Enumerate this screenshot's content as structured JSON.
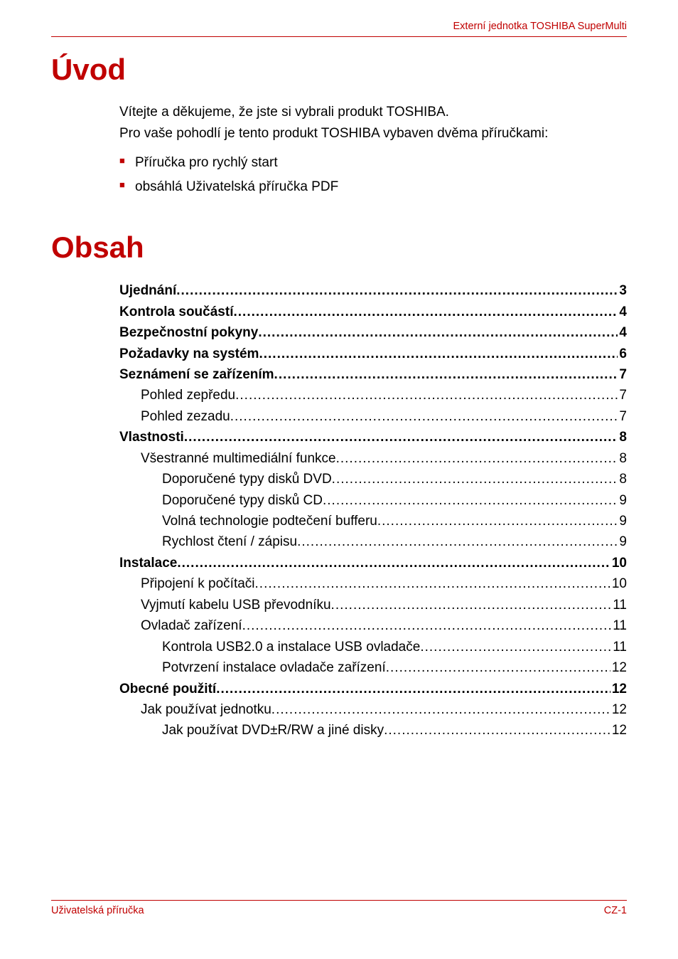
{
  "colors": {
    "accent": "#c00000",
    "text": "#000000",
    "background": "#ffffff"
  },
  "typography": {
    "body_fontsize_pt": 14,
    "h1_fontsize_pt": 32,
    "header_footer_fontsize_pt": 11,
    "font_family": "Arial"
  },
  "header": {
    "right_text": "Externí jednotka TOSHIBA SuperMulti"
  },
  "sections": {
    "uvod": {
      "title": "Úvod",
      "paragraphs": [
        "Vítejte a děkujeme, že jste si vybrali produkt TOSHIBA.",
        "Pro vaše pohodlí je tento produkt TOSHIBA vybaven dvěma příručkami:"
      ],
      "bullets": [
        "Příručka pro rychlý start",
        "obsáhlá Uživatelská příručka PDF"
      ]
    },
    "obsah": {
      "title": "Obsah"
    }
  },
  "toc": [
    {
      "level": 0,
      "label": "Ujednání",
      "page": "3"
    },
    {
      "level": 0,
      "label": "Kontrola součástí",
      "page": "4"
    },
    {
      "level": 0,
      "label": "Bezpečnostní pokyny",
      "page": "4"
    },
    {
      "level": 0,
      "label": "Požadavky na systém",
      "page": "6"
    },
    {
      "level": 0,
      "label": "Seznámení se zařízením",
      "page": "7"
    },
    {
      "level": 1,
      "label": "Pohled zepředu",
      "page": "7"
    },
    {
      "level": 1,
      "label": "Pohled zezadu",
      "page": "7"
    },
    {
      "level": 0,
      "label": "Vlastnosti",
      "page": "8"
    },
    {
      "level": 1,
      "label": "Všestranné multimediální funkce",
      "page": "8"
    },
    {
      "level": 2,
      "label": "Doporučené typy disků DVD",
      "page": "8"
    },
    {
      "level": 2,
      "label": "Doporučené typy disků CD",
      "page": "9"
    },
    {
      "level": 2,
      "label": "Volná technologie podtečení bufferu",
      "page": "9"
    },
    {
      "level": 2,
      "label": "Rychlost čtení / zápisu",
      "page": "9"
    },
    {
      "level": 0,
      "label": "Instalace",
      "page": "10"
    },
    {
      "level": 1,
      "label": "Připojení k počítači",
      "page": "10"
    },
    {
      "level": 1,
      "label": "Vyjmutí kabelu USB převodníku",
      "page": "11"
    },
    {
      "level": 1,
      "label": "Ovladač zařízení",
      "page": "11"
    },
    {
      "level": 2,
      "label": "Kontrola USB2.0 a instalace USB ovladače",
      "page": "11"
    },
    {
      "level": 2,
      "label": "Potvrzení instalace ovladače zařízení",
      "page": "12"
    },
    {
      "level": 0,
      "label": "Obecné použití",
      "page": "12"
    },
    {
      "level": 1,
      "label": "Jak používat jednotku",
      "page": "12"
    },
    {
      "level": 2,
      "label": "Jak používat DVD±R/RW a jiné disky",
      "page": "12"
    }
  ],
  "footer": {
    "left_text": "Uživatelská příručka",
    "right_text": "CZ-1"
  }
}
